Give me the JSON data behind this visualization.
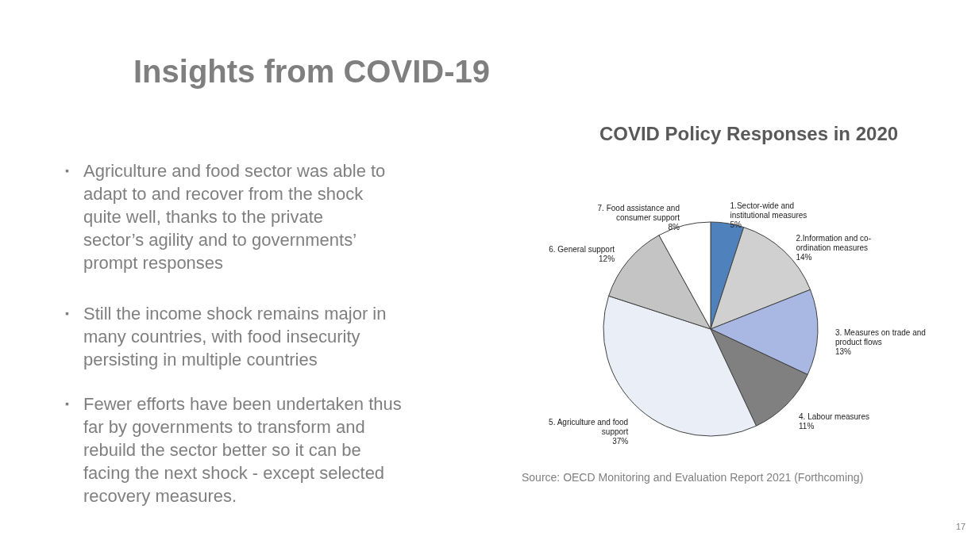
{
  "chart_data": {
    "type": "pie",
    "title": "COVID Policy Responses in 2020",
    "categories": [
      "1.Sector-wide and institutional measures",
      "2.Information and co-ordination measures",
      "3. Measures on trade and product flows",
      "4. Labour measures",
      "5. Agriculture and food support",
      "6. General support",
      "7. Food assistance and consumer support"
    ],
    "values": [
      5,
      14,
      13,
      11,
      37,
      12,
      8
    ],
    "value_labels": [
      "5%",
      "14%",
      "13%",
      "11%",
      "37%",
      "12%",
      "8%"
    ],
    "colors": [
      "#4f81bd",
      "#d0d0d0",
      "#a9b8e2",
      "#808080",
      "#eaeef6",
      "#c4c4c4",
      "#ffffff"
    ],
    "annotations": [
      "Insights from COVID-19",
      "▪ Agriculture and food sector was able to adapt to and recover from the shock quite well, thanks to the private sector’s agility and to governments’ prompt responses",
      "▪ Still the income shock remains major in many countries, with food insecurity persisting in multiple countries",
      "▪ Fewer efforts have been undertaken thus far by governments to transform and rebuild the sector better so it can be facing the next shock - except selected recovery measures.",
      "Source: OECD Monitoring and Evaluation Report 2021 (Forthcoming)",
      "17"
    ]
  }
}
